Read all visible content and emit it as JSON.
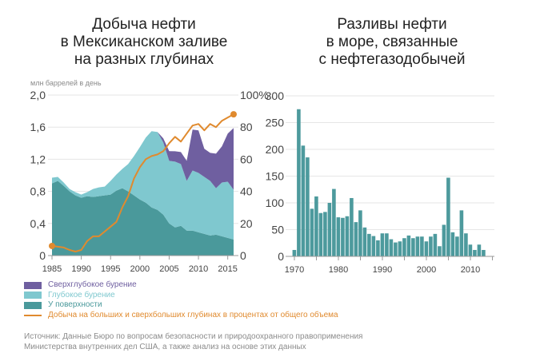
{
  "colors": {
    "ultra_deep": "#6f5fa0",
    "deep": "#7fc8cf",
    "shallow": "#4a999b",
    "share_line": "#e08a2e",
    "bars": "#4d9a9d",
    "grid": "#e6e6e6",
    "axis": "#999999"
  },
  "chart_data": [
    {
      "type": "area",
      "title": "Добыча нефти\nв Мексиканском заливе\nна разных глубинах",
      "title_lines": [
        "Добыча нефти",
        "в Мексиканском заливе",
        "на разных глубинах"
      ],
      "ylabel": "млн баррелей в день",
      "ylim": [
        0,
        2.0
      ],
      "y_ticks": [
        "0",
        "0,4",
        "0,8",
        "1,2",
        "1,6",
        "2,0"
      ],
      "y_tick_values": [
        0,
        0.4,
        0.8,
        1.2,
        1.6,
        2.0
      ],
      "y2lim": [
        0,
        100
      ],
      "y2_ticks": [
        "0",
        "20",
        "40",
        "60",
        "80",
        "100%"
      ],
      "y2_tick_values": [
        0,
        20,
        40,
        60,
        80,
        100
      ],
      "x_ticks": [
        "1985",
        "1990",
        "1995",
        "2000",
        "2005",
        "2010",
        "2015"
      ],
      "x_tick_values": [
        1985,
        1990,
        1995,
        2000,
        2005,
        2010,
        2015
      ],
      "xlim": [
        1985,
        2016
      ],
      "grid": true,
      "x": [
        1985,
        1986,
        1987,
        1988,
        1989,
        1990,
        1991,
        1992,
        1993,
        1994,
        1995,
        1996,
        1997,
        1998,
        1999,
        2000,
        2001,
        2002,
        2003,
        2004,
        2005,
        2006,
        2007,
        2008,
        2009,
        2010,
        2011,
        2012,
        2013,
        2014,
        2015,
        2016
      ],
      "series": [
        {
          "name": "У поверхности",
          "key": "shallow",
          "values": [
            0.9,
            0.93,
            0.87,
            0.8,
            0.75,
            0.72,
            0.74,
            0.73,
            0.74,
            0.75,
            0.76,
            0.81,
            0.84,
            0.8,
            0.75,
            0.7,
            0.66,
            0.6,
            0.57,
            0.51,
            0.4,
            0.35,
            0.37,
            0.31,
            0.31,
            0.29,
            0.27,
            0.25,
            0.26,
            0.24,
            0.22,
            0.2
          ]
        },
        {
          "name": "Глубокое бурение",
          "key": "deep",
          "values": [
            0.07,
            0.05,
            0.04,
            0.03,
            0.04,
            0.04,
            0.05,
            0.1,
            0.11,
            0.11,
            0.17,
            0.2,
            0.24,
            0.34,
            0.49,
            0.65,
            0.81,
            0.95,
            0.97,
            0.9,
            0.78,
            0.82,
            0.77,
            0.62,
            0.75,
            0.74,
            0.71,
            0.68,
            0.58,
            0.67,
            0.7,
            0.62
          ]
        },
        {
          "name": "Сверхглубокое бурение",
          "key": "ultra_deep",
          "values": [
            0,
            0,
            0,
            0,
            0,
            0,
            0,
            0,
            0,
            0,
            0,
            0,
            0,
            0,
            0,
            0,
            0,
            0,
            0,
            0.05,
            0.12,
            0.13,
            0.15,
            0.25,
            0.51,
            0.53,
            0.35,
            0.35,
            0.43,
            0.45,
            0.6,
            0.77
          ]
        },
        {
          "name": "Добыча на больших и сверхбольших глубинах в процентах от общего объема",
          "key": "share_line",
          "axis": "right",
          "type": "line",
          "values": [
            6,
            5.5,
            5,
            3.5,
            2.5,
            3.5,
            9,
            12,
            12,
            15,
            18,
            21,
            30,
            37,
            48,
            55,
            60,
            62,
            63,
            65,
            70,
            74,
            71,
            76,
            81,
            82,
            78,
            82,
            80,
            84,
            86,
            88
          ]
        }
      ]
    },
    {
      "type": "bar",
      "title": "Разливы нефти\nв море, связанные\nс нефтегазодобычей",
      "title_lines": [
        "Разливы нефти",
        "в море, связанные",
        "с нефтегазодобычей"
      ],
      "xlabel": "",
      "ylabel": "",
      "ylim": [
        0,
        300
      ],
      "y_ticks": [
        "0",
        "50",
        "100",
        "150",
        "200",
        "250",
        "300"
      ],
      "y_tick_values": [
        0,
        50,
        100,
        150,
        200,
        250,
        300
      ],
      "x_ticks": [
        "1970",
        "1980",
        "1990",
        "2000",
        "2010"
      ],
      "x_tick_values": [
        1970,
        1980,
        1990,
        2000,
        2010
      ],
      "grid": true,
      "categories": [
        1970,
        1971,
        1972,
        1973,
        1974,
        1975,
        1976,
        1977,
        1978,
        1979,
        1980,
        1981,
        1982,
        1983,
        1984,
        1985,
        1986,
        1987,
        1988,
        1989,
        1990,
        1991,
        1992,
        1993,
        1994,
        1995,
        1996,
        1997,
        1998,
        1999,
        2000,
        2001,
        2002,
        2003,
        2004,
        2005,
        2006,
        2007,
        2008,
        2009,
        2010,
        2011,
        2012,
        2013
      ],
      "values": [
        12,
        275,
        207,
        185,
        89,
        112,
        81,
        83,
        100,
        126,
        73,
        72,
        75,
        109,
        64,
        86,
        54,
        42,
        38,
        30,
        43,
        43,
        32,
        26,
        28,
        34,
        39,
        34,
        37,
        37,
        28,
        37,
        42,
        19,
        59,
        147,
        45,
        37,
        86,
        43,
        22,
        12,
        22,
        12
      ]
    }
  ],
  "legend": [
    {
      "label": "Сверхглубокое бурение",
      "key": "ultra_deep",
      "kind": "box"
    },
    {
      "label": "Глубокое бурение",
      "key": "deep",
      "kind": "box"
    },
    {
      "label": "У поверхности",
      "key": "shallow",
      "kind": "box"
    },
    {
      "label": "Добыча на больших и сверхбольших глубинах в процентах от общего объема",
      "key": "share_line",
      "kind": "line"
    }
  ],
  "source": {
    "line1": "Источник: Данные Бюро по вопросам безопасности и природоохранного правоприменения",
    "line2": "Министерства внутренних дел США, а также анализ на основе этих данных"
  }
}
